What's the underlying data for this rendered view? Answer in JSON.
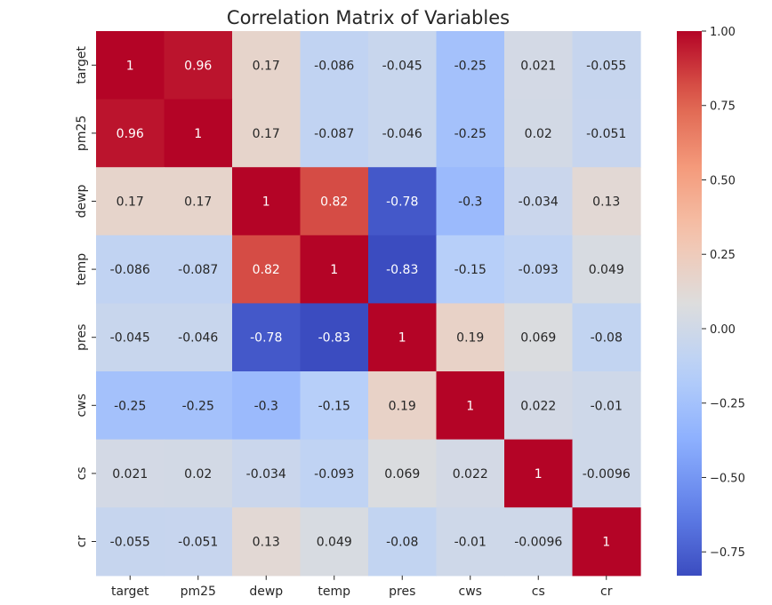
{
  "chart_data": {
    "type": "heatmap",
    "title": "Correlation Matrix of Variables",
    "xlabel": "",
    "ylabel": "",
    "x_categories": [
      "target",
      "pm25",
      "dewp",
      "temp",
      "pres",
      "cws",
      "cs",
      "cr"
    ],
    "y_categories": [
      "target",
      "pm25",
      "dewp",
      "temp",
      "pres",
      "cws",
      "cs",
      "cr"
    ],
    "values": [
      [
        1,
        0.96,
        0.17,
        -0.086,
        -0.045,
        -0.25,
        0.021,
        -0.055
      ],
      [
        0.96,
        1,
        0.17,
        -0.087,
        -0.046,
        -0.25,
        0.02,
        -0.051
      ],
      [
        0.17,
        0.17,
        1,
        0.82,
        -0.78,
        -0.3,
        -0.034,
        0.13
      ],
      [
        -0.086,
        -0.087,
        0.82,
        1,
        -0.83,
        -0.15,
        -0.093,
        0.049
      ],
      [
        -0.045,
        -0.046,
        -0.78,
        -0.83,
        1,
        0.19,
        0.069,
        -0.08
      ],
      [
        -0.25,
        -0.25,
        -0.3,
        -0.15,
        0.19,
        1,
        0.022,
        -0.01
      ],
      [
        0.021,
        0.02,
        -0.034,
        -0.093,
        0.069,
        0.022,
        1,
        -0.0096
      ],
      [
        -0.055,
        -0.051,
        0.13,
        0.049,
        -0.08,
        -0.01,
        -0.0096,
        1
      ]
    ],
    "labels": [
      [
        "1",
        "0.96",
        "0.17",
        "-0.086",
        "-0.045",
        "-0.25",
        "0.021",
        "-0.055"
      ],
      [
        "0.96",
        "1",
        "0.17",
        "-0.087",
        "-0.046",
        "-0.25",
        "0.02",
        "-0.051"
      ],
      [
        "0.17",
        "0.17",
        "1",
        "0.82",
        "-0.78",
        "-0.3",
        "-0.034",
        "0.13"
      ],
      [
        "-0.086",
        "-0.087",
        "0.82",
        "1",
        "-0.83",
        "-0.15",
        "-0.093",
        "0.049"
      ],
      [
        "-0.045",
        "-0.046",
        "-0.78",
        "-0.83",
        "1",
        "0.19",
        "0.069",
        "-0.08"
      ],
      [
        "-0.25",
        "-0.25",
        "-0.3",
        "-0.15",
        "0.19",
        "1",
        "0.022",
        "-0.01"
      ],
      [
        "0.021",
        "0.02",
        "-0.034",
        "-0.093",
        "0.069",
        "0.022",
        "1",
        "-0.0096"
      ],
      [
        "-0.055",
        "-0.051",
        "0.13",
        "0.049",
        "-0.08",
        "-0.01",
        "-0.0096",
        "1"
      ]
    ],
    "colormap": "coolwarm",
    "color_range": [
      -0.83,
      1
    ],
    "colorbar": {
      "ticks": [
        1.0,
        0.75,
        0.5,
        0.25,
        0.0,
        -0.25,
        -0.5,
        -0.75
      ],
      "tick_labels": [
        "1.00",
        "0.75",
        "0.50",
        "0.25",
        "0.00",
        "−0.25",
        "−0.50",
        "−0.75"
      ]
    },
    "grid": false,
    "colors": {
      "low": "#3b4cc0",
      "mid": "#dddddd",
      "high": "#b40426"
    }
  }
}
